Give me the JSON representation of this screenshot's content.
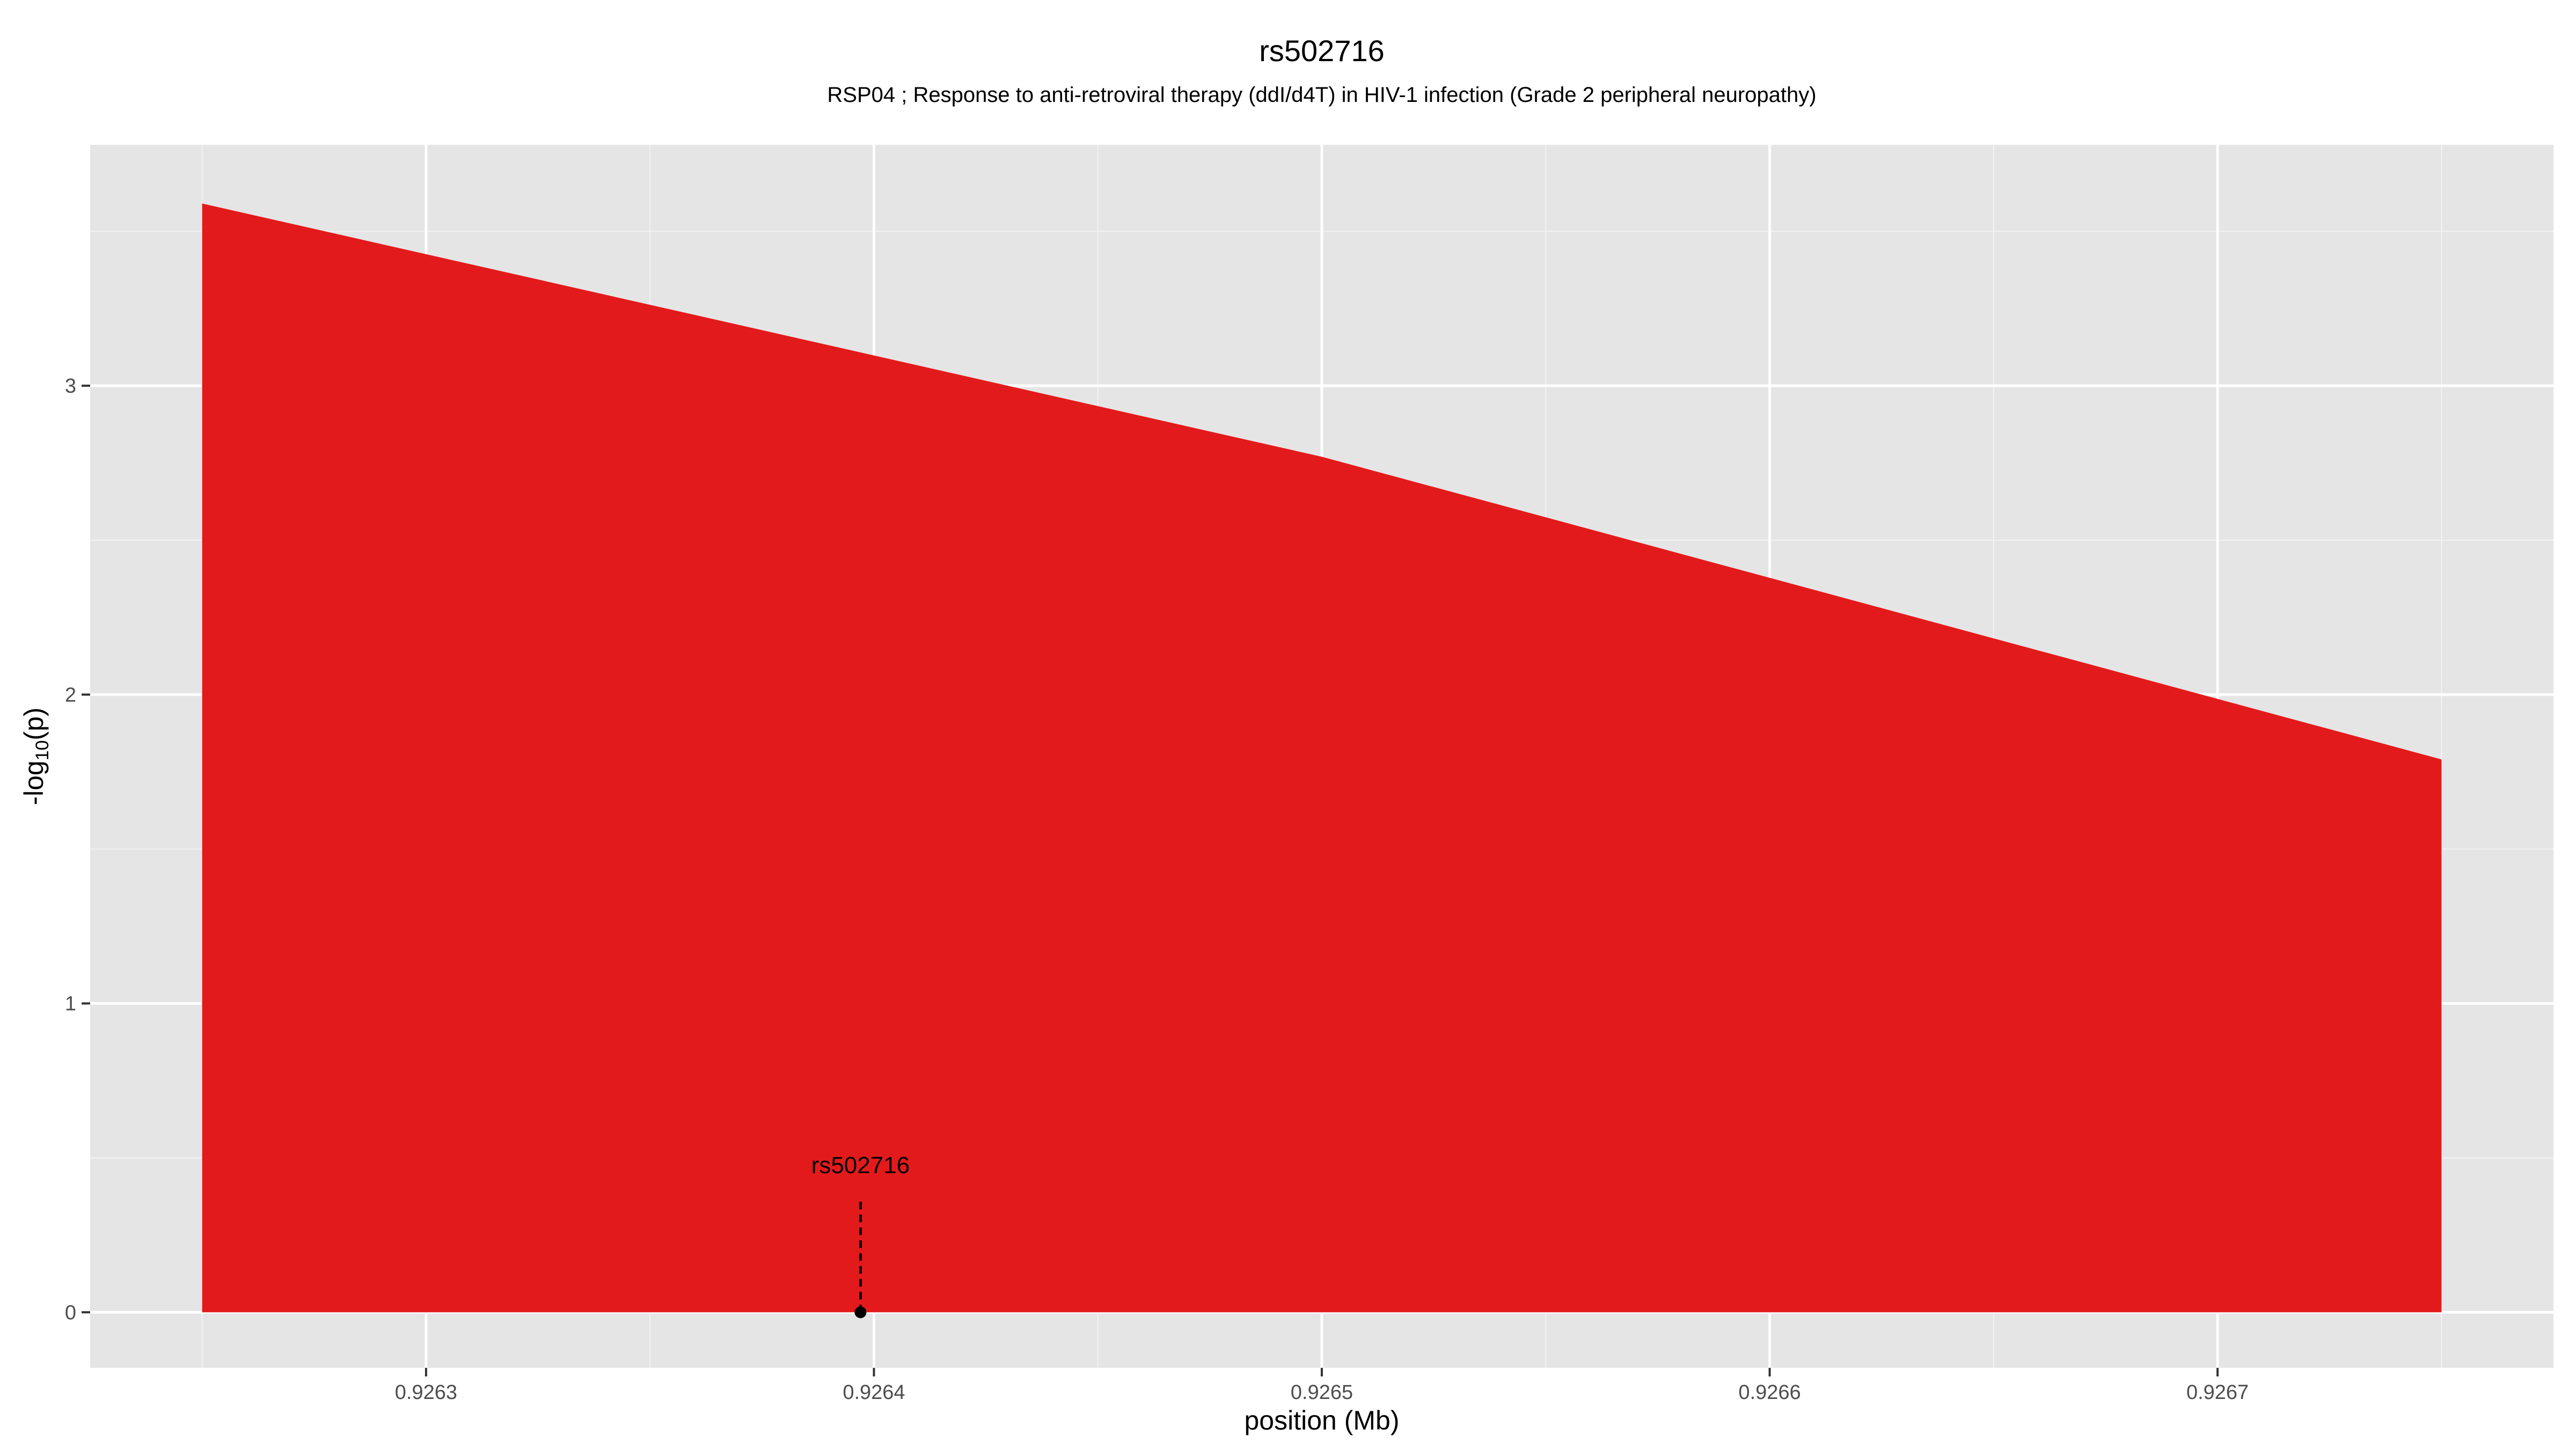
{
  "chart_data": {
    "type": "area",
    "title": "rs502716",
    "subtitle": "RSP04 ; Response to anti-retroviral therapy (ddI/d4T) in HIV-1 infection (Grade 2 peripheral neuropathy)",
    "xlabel": "position (Mb)",
    "ylabel_main": "-log",
    "ylabel_sub": "10",
    "ylabel_tail": "(p)",
    "xlim": [
      0.926225,
      0.926775
    ],
    "ylim": [
      -0.18,
      3.78
    ],
    "x_ticks": [
      0.9263,
      0.9264,
      0.9265,
      0.9266,
      0.9267
    ],
    "x_tick_labels": [
      "0.9263",
      "0.9264",
      "0.9265",
      "0.9266",
      "0.9267"
    ],
    "x_minor_ticks": [
      0.92625,
      0.92635,
      0.92645,
      0.92655,
      0.92665,
      0.92675
    ],
    "y_ticks": [
      0,
      1,
      2,
      3
    ],
    "y_tick_labels": [
      "0",
      "1",
      "2",
      "3"
    ],
    "y_minor_ticks": [
      0.5,
      1.5,
      2.5,
      3.5
    ],
    "grid": true,
    "series": [
      {
        "x": [
          0.92625,
          0.9265,
          0.92675
        ],
        "y": [
          3.59,
          2.77,
          1.79
        ],
        "fill": "#e31a1c"
      }
    ],
    "annotation": {
      "label": "rs502716",
      "x": 0.926397,
      "y": 0,
      "line_top": 0.36,
      "label_y": 0.44
    },
    "colors": {
      "panel_bg": "#e5e5e5",
      "grid_major": "#ffffff",
      "grid_minor": "#f2f2f2",
      "area_fill": "#e31a1c",
      "text": "#000000",
      "tick_text": "#4d4d4d"
    }
  }
}
